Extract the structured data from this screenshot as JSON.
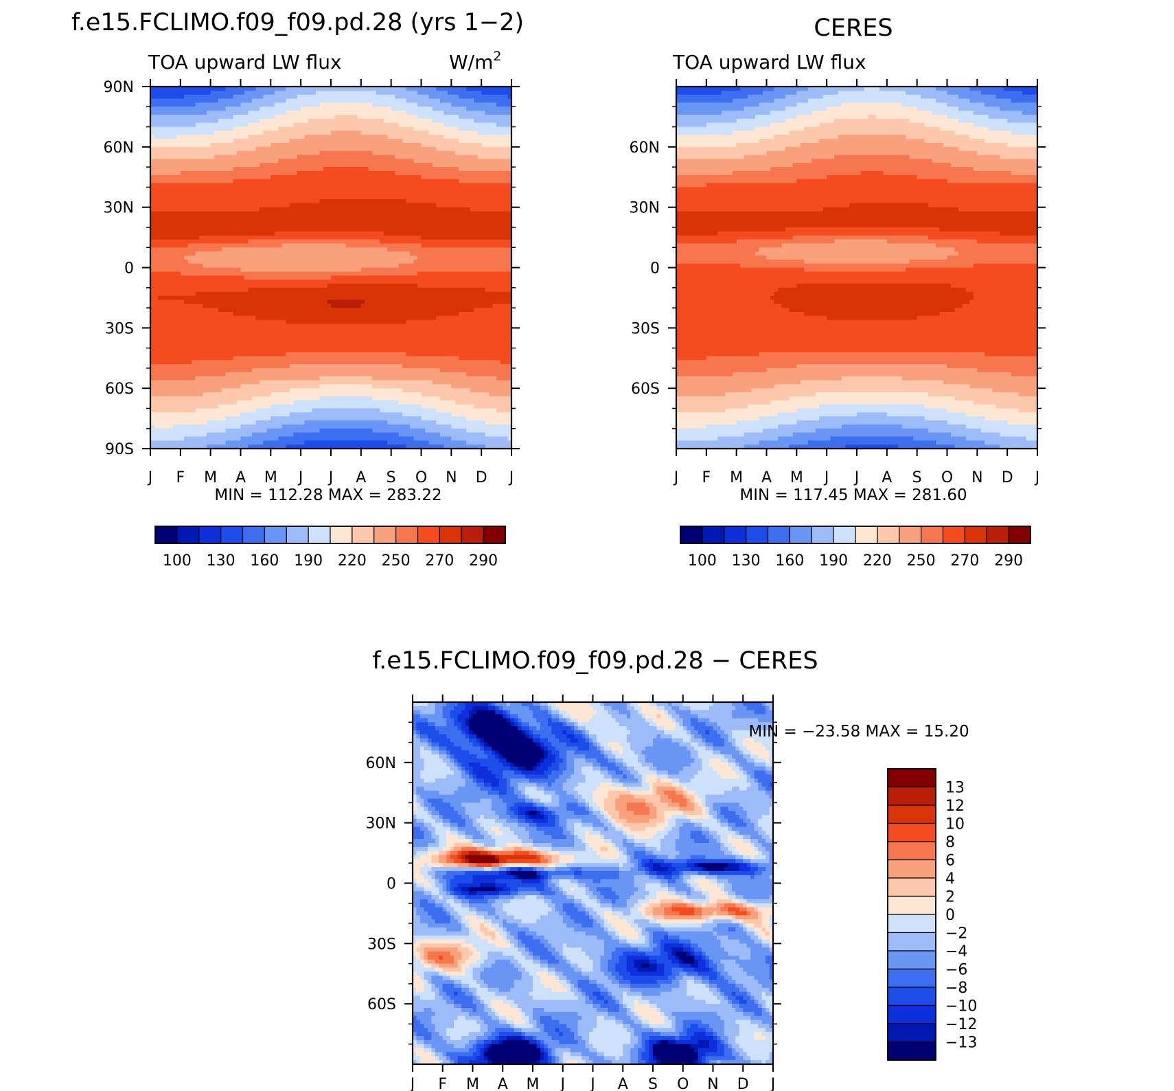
{
  "figure": {
    "left_title": "f.e15.FCLIMO.f09_f09.pd.28 (yrs 1−2)",
    "right_title": "CERES",
    "bottom_title": "f.e15.FCLIMO.f09_f09.pd.28 − CERES"
  },
  "chart_data": [
    {
      "id": "model",
      "type": "contour",
      "title": "f.e15.FCLIMO.f09_f09.pd.28 (yrs 1−2)",
      "subtitle_left": "TOA upward LW flux",
      "units": "W/m",
      "units_superscript": "2",
      "x_labels": [
        "J",
        "F",
        "M",
        "A",
        "M",
        "J",
        "J",
        "A",
        "S",
        "O",
        "N",
        "D",
        "J"
      ],
      "y_labels": [
        "90N",
        "60N",
        "30N",
        "0",
        "30S",
        "60S",
        "90S"
      ],
      "y_values": [
        90,
        60,
        30,
        0,
        -30,
        -60,
        -90
      ],
      "ylim": [
        -90,
        90
      ],
      "stats_text": "MIN = 112.28 MAX = 283.22",
      "min": 112.28,
      "max": 283.22,
      "colorbar_labels": [
        "100",
        "130",
        "160",
        "190",
        "220",
        "250",
        "270",
        "290"
      ],
      "field": "model"
    },
    {
      "id": "obs",
      "type": "contour",
      "title": "CERES",
      "subtitle_left": "TOA upward LW flux",
      "x_labels": [
        "J",
        "F",
        "M",
        "A",
        "M",
        "J",
        "J",
        "A",
        "S",
        "O",
        "N",
        "D",
        "J"
      ],
      "y_labels": [
        "60N",
        "30N",
        "0",
        "30S",
        "60S"
      ],
      "y_values": [
        60,
        30,
        0,
        -30,
        -60
      ],
      "ylim": [
        -90,
        90
      ],
      "stats_text": "MIN = 117.45 MAX = 281.60",
      "min": 117.45,
      "max": 281.6,
      "colorbar_labels": [
        "100",
        "130",
        "160",
        "190",
        "220",
        "250",
        "270",
        "290"
      ],
      "field": "obs"
    },
    {
      "id": "diff",
      "type": "contour",
      "title": "f.e15.FCLIMO.f09_f09.pd.28 − CERES",
      "x_labels": [
        "J",
        "F",
        "M",
        "A",
        "M",
        "J",
        "J",
        "A",
        "S",
        "O",
        "N",
        "D",
        "J"
      ],
      "y_labels": [
        "60N",
        "30N",
        "0",
        "30S",
        "60S"
      ],
      "y_values": [
        60,
        30,
        0,
        -30,
        -60
      ],
      "ylim": [
        -90,
        90
      ],
      "stats_text": "MIN = −23.58 MAX =  15.20",
      "min": -23.58,
      "max": 15.2,
      "colorbar_labels": [
        "13",
        "12",
        "10",
        "8",
        "6",
        "4",
        "2",
        "0",
        "−2",
        "−4",
        "−6",
        "−8",
        "−10",
        "−12",
        "−13"
      ],
      "field": "diff"
    }
  ],
  "levels": {
    "abs": [
      100,
      115,
      130,
      145,
      160,
      175,
      190,
      205,
      220,
      235,
      250,
      260,
      270,
      280,
      290
    ],
    "diff": [
      -13,
      -12,
      -10,
      -8,
      -6,
      -4,
      -2,
      0,
      2,
      4,
      6,
      8,
      10,
      12,
      13
    ]
  },
  "palette": [
    "#000074",
    "#0019b3",
    "#0d2fdc",
    "#1c4ce9",
    "#3d6eef",
    "#6995f5",
    "#9cbbf8",
    "#cde2fa",
    "#fde6d3",
    "#fcc7aa",
    "#f9a07c",
    "#f6764d",
    "#f44b1f",
    "#d93308",
    "#b91f08",
    "#830000"
  ]
}
